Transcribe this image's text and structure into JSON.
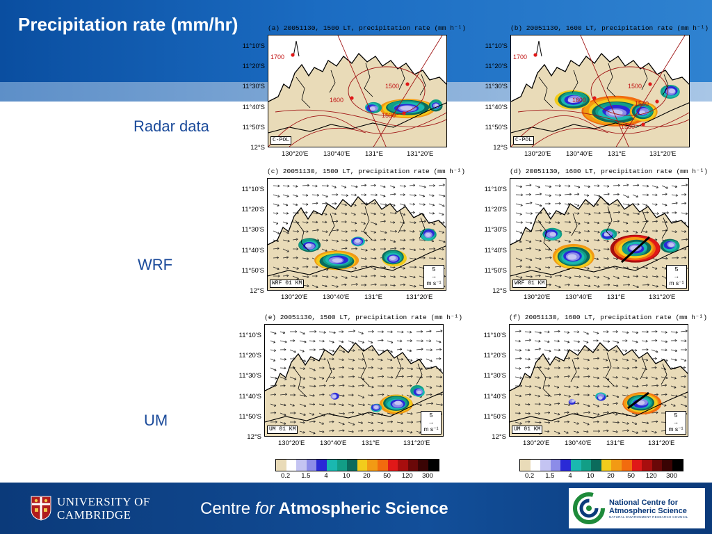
{
  "title": "Precipitation rate (mm/hr)",
  "row_labels": {
    "radar": "Radar data",
    "wrf": "WRF",
    "um": "UM"
  },
  "panels": [
    {
      "title": "(a) 20051130, 1500 LT, precipitation rate (mm h⁻¹)",
      "tag": "C-POL"
    },
    {
      "title": "(b) 20051130, 1600 LT, precipitation rate (mm h⁻¹)",
      "tag": "C-POL"
    },
    {
      "title": "(c) 20051130, 1500 LT, precipitation rate (mm h⁻¹)",
      "tag": "WRF 01 KM"
    },
    {
      "title": "(d) 20051130, 1600 LT, precipitation rate (mm h⁻¹)",
      "tag": "WRF 01 KM"
    },
    {
      "title": "(e) 20051130, 1500 LT, precipitation rate (mm h⁻¹)",
      "tag": "UM 01 KM"
    },
    {
      "title": "(f) 20051130, 1600 LT, precipitation rate (mm h⁻¹)",
      "tag": "UM 01 KM"
    }
  ],
  "y_ticks": [
    "11°10'S",
    "11°20'S",
    "11°30'S",
    "11°40'S",
    "11°50'S",
    "12°S"
  ],
  "x_ticks": [
    "130°20'E",
    "130°40'E",
    "131°E",
    "131°20'E"
  ],
  "radar_time_labels": {
    "a": [
      "1700",
      "1600",
      "1500",
      "1530"
    ],
    "b": [
      "1700",
      "1600",
      "1500",
      "1530",
      "1530"
    ]
  },
  "wind_ref": {
    "value": "5",
    "arrow": "→",
    "unit": "m s⁻¹"
  },
  "colorbar": {
    "colors": [
      "#e9dbb8",
      "#ffffff",
      "#c4c4f2",
      "#8c8ce8",
      "#2a2ad6",
      "#1ab8b0",
      "#129e86",
      "#0b6b5c",
      "#f2cc1c",
      "#f29a14",
      "#f26b0e",
      "#e01818",
      "#a80e0e",
      "#6a0808",
      "#3a0404",
      "#000000"
    ],
    "ticks": [
      "0.2",
      "1.5",
      "4",
      "10",
      "20",
      "50",
      "120",
      "300"
    ]
  },
  "footer": {
    "university": [
      "UNIVERSITY OF",
      "CAMBRIDGE"
    ],
    "centre_pre": "Centre ",
    "centre_for": "for",
    "centre_post": " Atmospheric Science",
    "ncas": [
      "National Centre for",
      "Atmospheric Science"
    ],
    "ncas_sub": "NATURAL ENVIRONMENT RESEARCH COUNCIL"
  }
}
